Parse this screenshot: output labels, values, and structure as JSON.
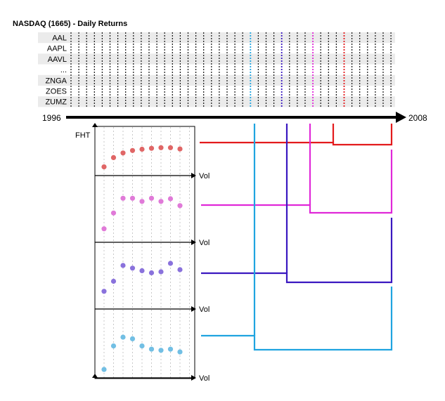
{
  "title": "NASDAQ (1665) - Daily Returns",
  "tickers": [
    "AAL",
    "AAPL",
    "AAVL",
    "...",
    "ZNGA",
    "ZOES",
    "ZUMZ"
  ],
  "timeline": {
    "start": "1996",
    "end": "2008"
  },
  "panel": {
    "y_label": "FHT",
    "x_label": "Vol"
  },
  "colors": {
    "series": [
      "#e06666",
      "#e07ad8",
      "#8a72dc",
      "#72bfe4"
    ],
    "lines": [
      "#e31a1c",
      "#e028d8",
      "#3a18c0",
      "#1fa4e0"
    ]
  },
  "chart_data": {
    "type": "scatter",
    "x_categories": 9,
    "series": [
      {
        "values": [
          0.1,
          0.4,
          0.55,
          0.63,
          0.67,
          0.7,
          0.72,
          0.72,
          0.68
        ]
      },
      {
        "values": [
          0.15,
          0.45,
          0.73,
          0.73,
          0.67,
          0.73,
          0.67,
          0.72,
          0.59
        ]
      },
      {
        "values": [
          0.23,
          0.42,
          0.72,
          0.67,
          0.62,
          0.58,
          0.6,
          0.76,
          0.64
        ]
      },
      {
        "values": [
          0.05,
          0.48,
          0.64,
          0.61,
          0.48,
          0.42,
          0.4,
          0.42,
          0.37
        ]
      }
    ]
  }
}
